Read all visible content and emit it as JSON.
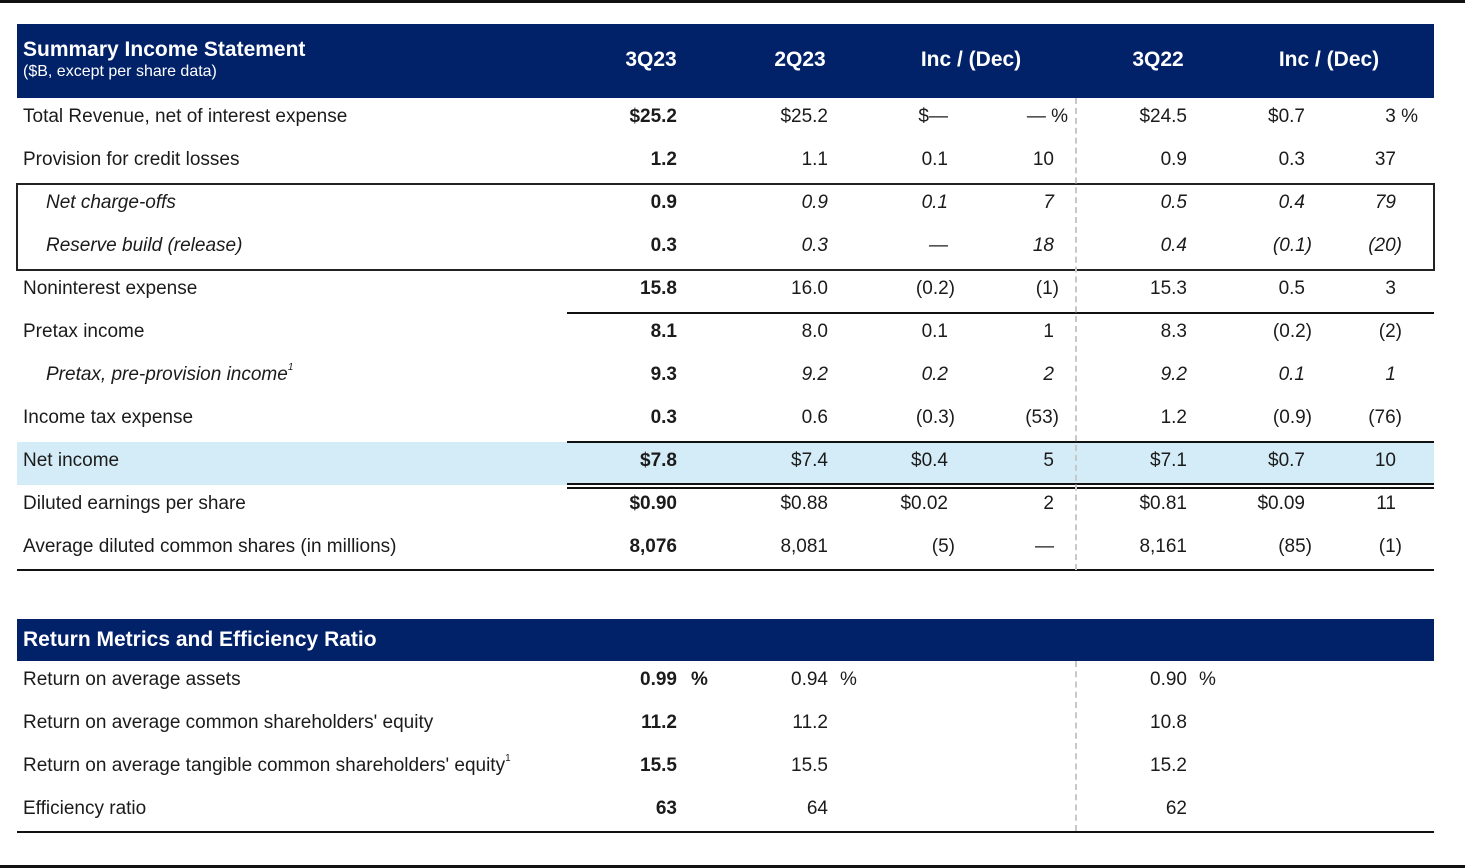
{
  "income_statement": {
    "title": "Summary Income Statement",
    "subtitle": "($B, except per share data)",
    "columns": [
      "3Q23",
      "2Q23",
      "Inc / (Dec)",
      "3Q22",
      "Inc / (Dec)"
    ],
    "rows": [
      {
        "label": "Total Revenue, net of interest expense",
        "q3_23": "$25.2",
        "q2_23": "$25.2",
        "chg_amt": "$—",
        "chg_pct": "— %",
        "q3_22": "$24.5",
        "yoy_amt": "$0.7",
        "yoy_pct": "3  %"
      },
      {
        "label": "Provision for credit losses",
        "q3_23": "1.2",
        "q2_23": "1.1",
        "chg_amt": "0.1",
        "chg_pct": "10",
        "q3_22": "0.9",
        "yoy_amt": "0.3",
        "yoy_pct": "37"
      },
      {
        "label": "Net charge-offs",
        "q3_23": "0.9",
        "q2_23": "0.9",
        "chg_amt": "0.1",
        "chg_pct": "7",
        "q3_22": "0.5",
        "yoy_amt": "0.4",
        "yoy_pct": "79"
      },
      {
        "label": "Reserve build (release)",
        "q3_23": "0.3",
        "q2_23": "0.3",
        "chg_amt": "—",
        "chg_pct": "18",
        "q3_22": "0.4",
        "yoy_amt": "(0.1)",
        "yoy_pct": "(20)"
      },
      {
        "label": "Noninterest expense",
        "q3_23": "15.8",
        "q2_23": "16.0",
        "chg_amt": "(0.2)",
        "chg_pct": "(1)",
        "q3_22": "15.3",
        "yoy_amt": "0.5",
        "yoy_pct": "3"
      },
      {
        "label": "Pretax income",
        "q3_23": "8.1",
        "q2_23": "8.0",
        "chg_amt": "0.1",
        "chg_pct": "1",
        "q3_22": "8.3",
        "yoy_amt": "(0.2)",
        "yoy_pct": "(2)"
      },
      {
        "label": "Pretax, pre-provision income",
        "footnote": "1",
        "q3_23": "9.3",
        "q2_23": "9.2",
        "chg_amt": "0.2",
        "chg_pct": "2",
        "q3_22": "9.2",
        "yoy_amt": "0.1",
        "yoy_pct": "1"
      },
      {
        "label": "Income tax expense",
        "q3_23": "0.3",
        "q2_23": "0.6",
        "chg_amt": "(0.3)",
        "chg_pct": "(53)",
        "q3_22": "1.2",
        "yoy_amt": "(0.9)",
        "yoy_pct": "(76)"
      },
      {
        "label": "Net income",
        "q3_23": "$7.8",
        "q2_23": "$7.4",
        "chg_amt": "$0.4",
        "chg_pct": "5",
        "q3_22": "$7.1",
        "yoy_amt": "$0.7",
        "yoy_pct": "10"
      },
      {
        "label": "Diluted earnings per share",
        "q3_23": "$0.90",
        "q2_23": "$0.88",
        "chg_amt": "$0.02",
        "chg_pct": "2",
        "q3_22": "$0.81",
        "yoy_amt": "$0.09",
        "yoy_pct": "11"
      },
      {
        "label": "Average diluted common shares (in millions)",
        "q3_23": "8,076",
        "q2_23": "8,081",
        "chg_amt": "(5)",
        "chg_pct": "—",
        "q3_22": "8,161",
        "yoy_amt": "(85)",
        "yoy_pct": "(1)"
      }
    ]
  },
  "return_metrics": {
    "title": "Return Metrics and Efficiency Ratio",
    "pct_sign": "%",
    "rows": [
      {
        "label": "Return on average assets",
        "q3_23": "0.99",
        "q2_23": "0.94",
        "q3_22": "0.90"
      },
      {
        "label": "Return on average common shareholders' equity",
        "q3_23": "11.2",
        "q2_23": "11.2",
        "q3_22": "10.8"
      },
      {
        "label": "Return on average tangible common shareholders' equity",
        "footnote": "1",
        "q3_23": "15.5",
        "q2_23": "15.5",
        "q3_22": "15.2"
      },
      {
        "label": "Efficiency ratio",
        "q3_23": "63",
        "q2_23": "64",
        "q3_22": "62"
      }
    ]
  },
  "colors": {
    "header_bg": "#012169",
    "highlight_bg": "#d4ecf7"
  }
}
